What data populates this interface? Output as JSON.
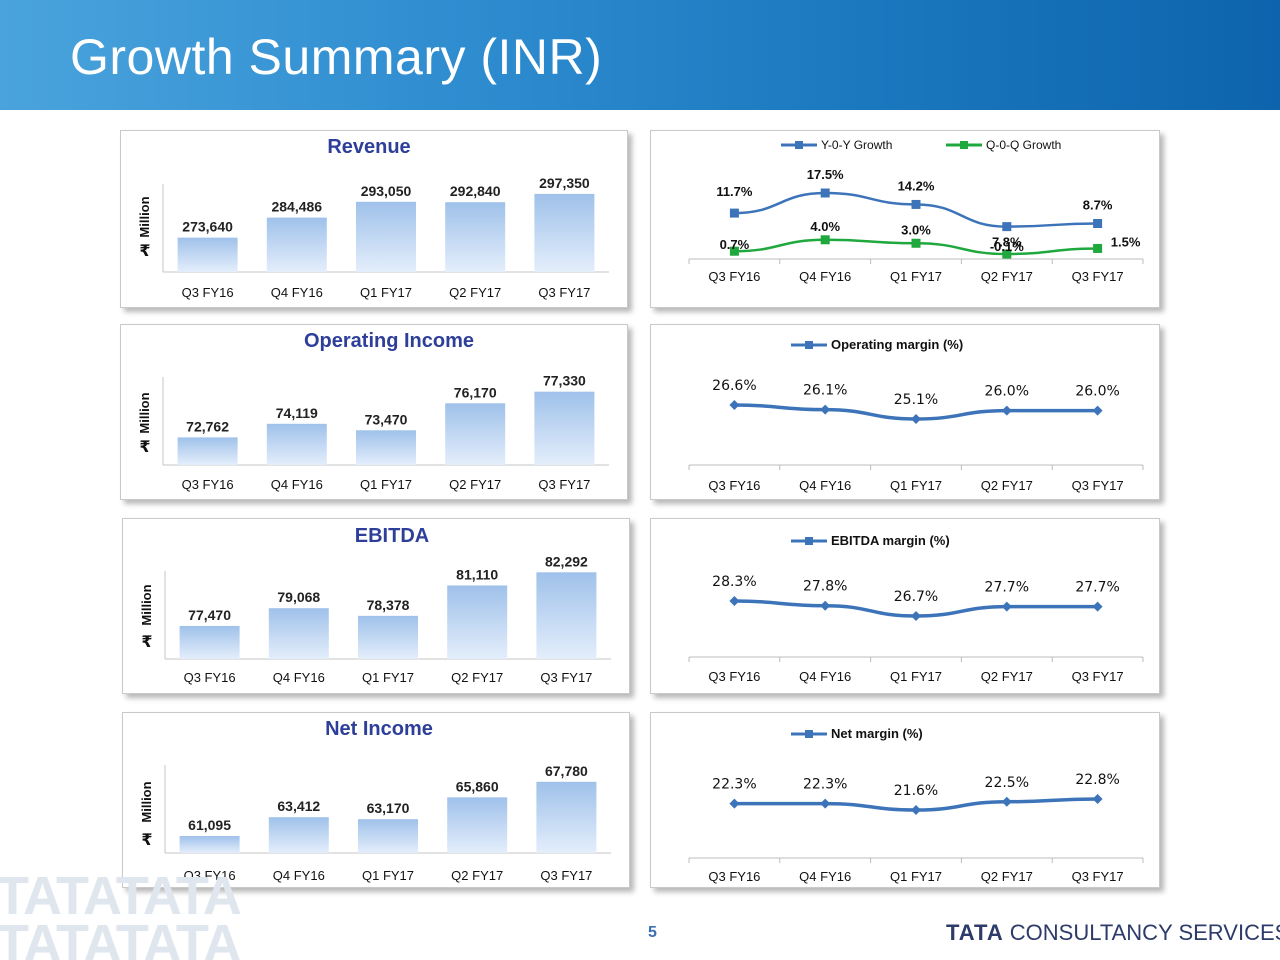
{
  "title": "Growth Summary (INR)",
  "page_number": "5",
  "footer": {
    "logo_word": "TATA",
    "company": "CONSULTANCY SERVICES",
    "watermark": "TATATATA"
  },
  "colors": {
    "header": "#1a76bd",
    "title_text": "#2e3f9a",
    "bar_top": "#9fc1ea",
    "bar_bottom": "#e4eefb",
    "line_blue": "#3d74b9",
    "line_green": "#1fa83d"
  },
  "chart_data": [
    {
      "type": "bar",
      "title": "Revenue",
      "ylabel": "₹ Million",
      "categories": [
        "Q3 FY16",
        "Q4 FY16",
        "Q1 FY17",
        "Q2 FY17",
        "Q3 FY17"
      ],
      "values": [
        273640,
        284486,
        293050,
        292840,
        297350
      ],
      "data_labels": [
        "273,640",
        "284,486",
        "293,050",
        "292,840",
        "297,350"
      ],
      "ylim": [
        255000,
        300000
      ]
    },
    {
      "type": "line",
      "categories": [
        "Q3 FY16",
        "Q4 FY16",
        "Q1 FY17",
        "Q2 FY17",
        "Q3 FY17"
      ],
      "series": [
        {
          "name": "Y-0-Y Growth",
          "values": [
            11.7,
            17.5,
            14.2,
            7.8,
            8.7
          ],
          "labels": [
            "11.7%",
            "17.5%",
            "14.2%",
            "7.8%",
            "8.7%"
          ],
          "color": "#3d74b9"
        },
        {
          "name": "Q-0-Q Growth",
          "values": [
            0.7,
            4.0,
            3.0,
            -0.1,
            1.5
          ],
          "labels": [
            "0.7%",
            "4.0%",
            "3.0%",
            "-0.1%",
            "1.5%"
          ],
          "color": "#1fa83d"
        }
      ],
      "legend": "top"
    },
    {
      "type": "bar",
      "title": "Operating Income",
      "ylabel": "₹ Million",
      "categories": [
        "Q3 FY16",
        "Q4 FY16",
        "Q1 FY17",
        "Q2 FY17",
        "Q3 FY17"
      ],
      "values": [
        72762,
        74119,
        73470,
        76170,
        77330
      ],
      "data_labels": [
        "72,762",
        "74,119",
        "73,470",
        "76,170",
        "77,330"
      ],
      "ylim": [
        70000,
        78000
      ]
    },
    {
      "type": "line",
      "categories": [
        "Q3 FY16",
        "Q4 FY16",
        "Q1 FY17",
        "Q2 FY17",
        "Q3 FY17"
      ],
      "series": [
        {
          "name": "Operating margin (%)",
          "values": [
            26.6,
            26.1,
            25.1,
            26.0,
            26.0
          ],
          "labels": [
            "26.6%",
            "26.1%",
            "25.1%",
            "26.0%",
            "26.0%"
          ],
          "color": "#3d74b9"
        }
      ],
      "legend": "top"
    },
    {
      "type": "bar",
      "title": "EBITDA",
      "ylabel": "₹ Million",
      "categories": [
        "Q3 FY16",
        "Q4 FY16",
        "Q1 FY17",
        "Q2 FY17",
        "Q3 FY17"
      ],
      "values": [
        77470,
        79068,
        78378,
        81110,
        82292
      ],
      "data_labels": [
        "77,470",
        "79,068",
        "78,378",
        "81,110",
        "82,292"
      ],
      "ylim": [
        74500,
        82500
      ]
    },
    {
      "type": "line",
      "categories": [
        "Q3 FY16",
        "Q4 FY16",
        "Q1 FY17",
        "Q2 FY17",
        "Q3 FY17"
      ],
      "series": [
        {
          "name": "EBITDA margin (%)",
          "values": [
            28.3,
            27.8,
            26.7,
            27.7,
            27.7
          ],
          "labels": [
            "28.3%",
            "27.8%",
            "26.7%",
            "27.7%",
            "27.7%"
          ],
          "color": "#3d74b9"
        }
      ],
      "legend": "top"
    },
    {
      "type": "bar",
      "title": "Net Income",
      "ylabel": "₹ Million",
      "categories": [
        "Q3 FY16",
        "Q4 FY16",
        "Q1 FY17",
        "Q2 FY17",
        "Q3 FY17"
      ],
      "values": [
        61095,
        63412,
        63170,
        65860,
        67780
      ],
      "data_labels": [
        "61,095",
        "63,412",
        "63,170",
        "65,860",
        "67,780"
      ],
      "ylim": [
        59000,
        68000
      ]
    },
    {
      "type": "line",
      "categories": [
        "Q3 FY16",
        "Q4 FY16",
        "Q1 FY17",
        "Q2 FY17",
        "Q3 FY17"
      ],
      "series": [
        {
          "name": "Net margin (%)",
          "values": [
            22.3,
            22.3,
            21.6,
            22.5,
            22.8
          ],
          "labels": [
            "22.3%",
            "22.3%",
            "21.6%",
            "22.5%",
            "22.8%"
          ],
          "color": "#3d74b9"
        }
      ],
      "legend": "top"
    }
  ]
}
